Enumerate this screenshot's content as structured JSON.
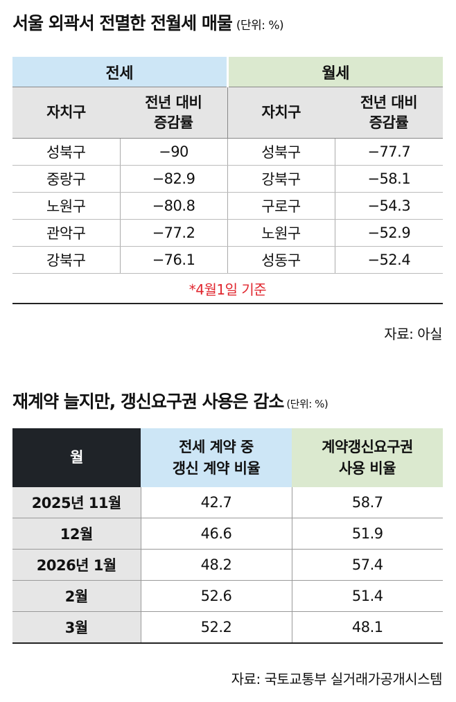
{
  "section1": {
    "title": "서울 외곽서 전멸한 전월세 매물",
    "unit": "(단위: %)",
    "groups": {
      "jeonse": "전세",
      "wolse": "월세"
    },
    "headers": {
      "district": "자치구",
      "change_line1": "전년 대비",
      "change_line2": "증감률"
    },
    "rows": [
      {
        "j_district": "성북구",
        "j_value": "−90",
        "w_district": "성북구",
        "w_value": "−77.7"
      },
      {
        "j_district": "중랑구",
        "j_value": "−82.9",
        "w_district": "강북구",
        "w_value": "−58.1"
      },
      {
        "j_district": "노원구",
        "j_value": "−80.8",
        "w_district": "구로구",
        "w_value": "−54.3"
      },
      {
        "j_district": "관악구",
        "j_value": "−77.2",
        "w_district": "노원구",
        "w_value": "−52.9"
      },
      {
        "j_district": "강북구",
        "j_value": "−76.1",
        "w_district": "성동구",
        "w_value": "−52.4"
      }
    ],
    "note": "*4월1일 기준",
    "source": "자료: 아실"
  },
  "section2": {
    "title": "재계약 늘지만, 갱신요구권 사용은 감소",
    "unit": "(단위: %)",
    "headers": {
      "month": "월",
      "renewal_line1": "전세 계약 중",
      "renewal_line2": "갱신 계약 비율",
      "right_line1": "계약갱신요구권",
      "right_line2": "사용 비율"
    },
    "rows": [
      {
        "month": "2025년 11월",
        "renewal": "42.7",
        "right": "58.7"
      },
      {
        "month": "12월",
        "renewal": "46.6",
        "right": "51.9"
      },
      {
        "month": "2026년 1월",
        "renewal": "48.2",
        "right": "57.4"
      },
      {
        "month": "2월",
        "renewal": "52.6",
        "right": "51.4"
      },
      {
        "month": "3월",
        "renewal": "52.2",
        "right": "48.1"
      }
    ],
    "source": "자료: 국토교통부 실거래가공개시스템"
  },
  "colors": {
    "jeonse_header": "#cde6f6",
    "wolse_header": "#dbe9cf",
    "month_header": "#1f2328",
    "note_red": "#e0262e",
    "label_gray": "#e6e6e6"
  }
}
